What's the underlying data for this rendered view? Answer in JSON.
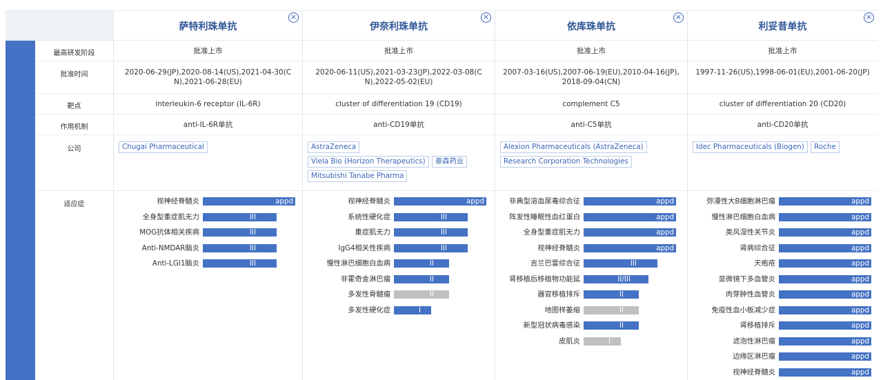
{
  "columns": [
    {
      "name": "萨特利珠单抗",
      "stage": "批准上市",
      "approval": "2020-06-29(JP),2020-08-14(US),2021-04-30(CN),2021-06-28(EU)",
      "approval_lines": [
        "2020-06-29(JP),2020-08-14(US),2021-04-30(C",
        "N),2021-06-28(EU)"
      ],
      "target": "interleukin-6 receptor (IL-6R)",
      "mechanism": "anti-IL-6R单抗",
      "companies": [
        "Chugai Pharmaceutical"
      ],
      "indications": [
        {
          "name": "视神经脊髓炎",
          "phase": "appd",
          "level": 1.0,
          "color": "blue"
        },
        {
          "name": "全身型重症肌无力",
          "phase": "III",
          "level": 0.8,
          "color": "blue"
        },
        {
          "name": "MOG抗体相关疾病",
          "phase": "III",
          "level": 0.8,
          "color": "blue"
        },
        {
          "name": "Anti-NMDAR脑炎",
          "phase": "III",
          "level": 0.8,
          "color": "blue"
        },
        {
          "name": "Anti-LGI1脑炎",
          "phase": "III",
          "level": 0.8,
          "color": "blue"
        }
      ]
    },
    {
      "name": "伊奈利珠单抗",
      "stage": "批准上市",
      "approval": "2020-06-11(US),2021-03-23(JP),2022-03-08(CN),2022-05-02(EU)",
      "approval_lines": [
        "2020-06-11(US),2021-03-23(JP),2022-03-08(C",
        "N),2022-05-02(EU)"
      ],
      "target": "cluster of differentiation 19 (CD19)",
      "mechanism": "anti-CD19单抗",
      "companies": [
        "AstraZeneca",
        "Viela Bio (Horizon Therapeutics)",
        "豪森药业",
        "Mitsubishi Tanabe Pharma"
      ],
      "indications": [
        {
          "name": "视神经脊髓炎",
          "phase": "appd",
          "level": 1.0,
          "color": "blue"
        },
        {
          "name": "系统性硬化症",
          "phase": "III",
          "level": 0.8,
          "color": "blue"
        },
        {
          "name": "重症肌无力",
          "phase": "III",
          "level": 0.8,
          "color": "blue"
        },
        {
          "name": "IgG4相关性疾病",
          "phase": "III",
          "level": 0.8,
          "color": "blue"
        },
        {
          "name": "慢性淋巴细胞白血病",
          "phase": "II",
          "level": 0.6,
          "color": "blue"
        },
        {
          "name": "非霍奇金淋巴瘤",
          "phase": "II",
          "level": 0.6,
          "color": "blue"
        },
        {
          "name": "多发性骨髓瘤",
          "phase": "II",
          "level": 0.6,
          "color": "gray"
        },
        {
          "name": "多发性硬化症",
          "phase": "I",
          "level": 0.4,
          "color": "blue"
        }
      ]
    },
    {
      "name": "依库珠单抗",
      "stage": "批准上市",
      "approval": "2007-03-16(US),2007-06-19(EU),2010-04-16(JP),2018-09-04(CN)",
      "approval_lines": [
        "2007-03-16(US),2007-06-19(EU),2010-04-16(JP),",
        "2018-09-04(CN)"
      ],
      "target": "complement C5",
      "mechanism": "anti-C5单抗",
      "companies": [
        "Alexion Pharmaceuticals (AstraZeneca)",
        "Research Corporation Technologies"
      ],
      "indications": [
        {
          "name": "非典型溶血尿毒综合征",
          "phase": "appd",
          "level": 1.0,
          "color": "blue"
        },
        {
          "name": "阵发性睡眠性血红蛋白",
          "phase": "appd",
          "level": 1.0,
          "color": "blue"
        },
        {
          "name": "全身型重症肌无力",
          "phase": "appd",
          "level": 1.0,
          "color": "blue"
        },
        {
          "name": "视神经脊髓炎",
          "phase": "appd",
          "level": 1.0,
          "color": "blue"
        },
        {
          "name": "吉兰巴雷综合征",
          "phase": "III",
          "level": 0.8,
          "color": "blue"
        },
        {
          "name": "肾移植后移植物功能延",
          "phase": "II/III",
          "level": 0.7,
          "color": "blue"
        },
        {
          "name": "器官移植排斥",
          "phase": "II",
          "level": 0.6,
          "color": "blue"
        },
        {
          "name": "地图样萎缩",
          "phase": "II",
          "level": 0.6,
          "color": "gray"
        },
        {
          "name": "新型冠状病毒感染",
          "phase": "II",
          "level": 0.6,
          "color": "blue"
        },
        {
          "name": "皮肌炎",
          "phase": "I",
          "level": 0.4,
          "color": "gray"
        }
      ]
    },
    {
      "name": "利妥昔单抗",
      "stage": "批准上市",
      "approval": "1997-11-26(US),1998-06-01(EU),2001-06-20(JP)",
      "approval_lines": [
        "1997-11-26(US),1998-06-01(EU),2001-06-20(JP)"
      ],
      "target": "cluster of differentiation 20 (CD20)",
      "mechanism": "anti-CD20单抗",
      "companies": [
        "Idec Pharmaceuticals (Biogen)",
        "Roche"
      ],
      "indications": [
        {
          "name": "弥漫性大B细胞淋巴瘤",
          "phase": "appd",
          "level": 1.0,
          "color": "blue"
        },
        {
          "name": "慢性淋巴细胞白血病",
          "phase": "appd",
          "level": 1.0,
          "color": "blue"
        },
        {
          "name": "类风湿性关节炎",
          "phase": "appd",
          "level": 1.0,
          "color": "blue"
        },
        {
          "name": "肾病综合征",
          "phase": "appd",
          "level": 1.0,
          "color": "blue"
        },
        {
          "name": "天疱疮",
          "phase": "appd",
          "level": 1.0,
          "color": "blue"
        },
        {
          "name": "显微镜下多血管炎",
          "phase": "appd",
          "level": 1.0,
          "color": "blue"
        },
        {
          "name": "肉芽肿性血管炎",
          "phase": "appd",
          "level": 1.0,
          "color": "blue"
        },
        {
          "name": "免疫性血小板减少症",
          "phase": "appd",
          "level": 1.0,
          "color": "blue"
        },
        {
          "name": "肾移植排斥",
          "phase": "appd",
          "level": 1.0,
          "color": "blue"
        },
        {
          "name": "滤泡性淋巴瘤",
          "phase": "appd",
          "level": 1.0,
          "color": "blue"
        },
        {
          "name": "边缘区淋巴瘤",
          "phase": "appd",
          "level": 1.0,
          "color": "blue"
        },
        {
          "name": "视神经脊髓炎",
          "phase": "appd",
          "level": 1.0,
          "color": "blue"
        }
      ]
    }
  ],
  "row_labels": {
    "stage": "最高研发阶段",
    "approval": "批准时间",
    "target": "靶点",
    "mechanism": "作用机制",
    "company": "公司",
    "indication": "适应症"
  },
  "colors": {
    "accent": "#4472c4",
    "title": "#2f5597",
    "gray_bar": "#c0c0c0"
  }
}
